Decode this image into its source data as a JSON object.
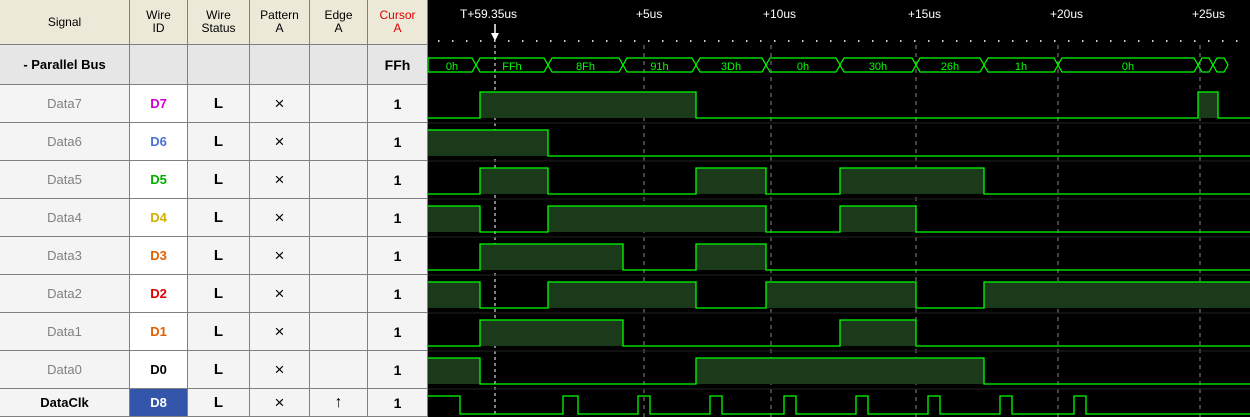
{
  "colors": {
    "wave": "#00ff00",
    "low_fill": "#000000",
    "high_fill": "#1a3a1a",
    "selected_wire": "#3355aa",
    "cursor_header": "#e00000",
    "D7": "#d000d0",
    "D6": "#4a6fd8",
    "D5": "#00b000",
    "D4": "#d0b000",
    "D3": "#e06000",
    "D2": "#e00000",
    "D1": "#e06000",
    "D0": "#000000",
    "D8": "#ffffff"
  },
  "headers": {
    "signal": "Signal",
    "wire_id": [
      "Wire",
      "ID"
    ],
    "wire_status": [
      "Wire",
      "Status"
    ],
    "pattern": [
      "Pattern",
      "A"
    ],
    "edge": [
      "Edge",
      "A"
    ],
    "cursor": [
      "Cursor",
      "A"
    ]
  },
  "bus": {
    "name": "- Parallel Bus",
    "cursor": "FFh"
  },
  "signals": [
    {
      "name": "Data7",
      "wire": "D7",
      "status": "L",
      "pattern": "×",
      "edge": "",
      "cursor": "1"
    },
    {
      "name": "Data6",
      "wire": "D6",
      "status": "L",
      "pattern": "×",
      "edge": "",
      "cursor": "1"
    },
    {
      "name": "Data5",
      "wire": "D5",
      "status": "L",
      "pattern": "×",
      "edge": "",
      "cursor": "1"
    },
    {
      "name": "Data4",
      "wire": "D4",
      "status": "L",
      "pattern": "×",
      "edge": "",
      "cursor": "1"
    },
    {
      "name": "Data3",
      "wire": "D3",
      "status": "L",
      "pattern": "×",
      "edge": "",
      "cursor": "1"
    },
    {
      "name": "Data2",
      "wire": "D2",
      "status": "L",
      "pattern": "×",
      "edge": "",
      "cursor": "1"
    },
    {
      "name": "Data1",
      "wire": "D1",
      "status": "L",
      "pattern": "×",
      "edge": "",
      "cursor": "1"
    },
    {
      "name": "Data0",
      "wire": "D0",
      "status": "L",
      "pattern": "×",
      "edge": "",
      "cursor": "1"
    },
    {
      "name": "DataClk",
      "wire": "D8",
      "status": "L",
      "pattern": "×",
      "edge": "↑",
      "cursor": "1"
    }
  ],
  "timeline": {
    "cursor_label": "T+59.35us",
    "ticks": [
      "+5us",
      "+10us",
      "+15us",
      "+20us",
      "+25us"
    ]
  },
  "bus_values": [
    "0h",
    "FFh",
    "8Fh",
    "91h",
    "3Dh",
    "0h",
    "30h",
    "26h",
    "1h",
    "0h"
  ],
  "waveforms": {
    "Data7": [
      0,
      1,
      1,
      1,
      0,
      0,
      0,
      0,
      0,
      0,
      0,
      1,
      0
    ],
    "Data6": [
      1,
      1,
      0,
      0,
      0,
      0,
      0,
      0,
      0,
      0,
      0,
      0,
      0
    ],
    "Data5": [
      0,
      1,
      0,
      0,
      1,
      0,
      1,
      1,
      0,
      0,
      0,
      0,
      0
    ],
    "Data4": [
      1,
      0,
      1,
      1,
      1,
      0,
      1,
      0,
      0,
      0,
      0,
      0,
      0
    ],
    "Data3": [
      0,
      1,
      1,
      0,
      1,
      0,
      0,
      0,
      0,
      0,
      0,
      0,
      0
    ],
    "Data2": [
      1,
      0,
      1,
      1,
      0,
      1,
      1,
      0,
      1,
      1,
      1,
      1,
      1
    ],
    "Data1": [
      0,
      1,
      1,
      0,
      0,
      0,
      1,
      0,
      0,
      0,
      0,
      0,
      0
    ],
    "Data0": [
      1,
      0,
      0,
      0,
      1,
      1,
      1,
      1,
      0,
      0,
      0,
      0,
      0
    ]
  }
}
